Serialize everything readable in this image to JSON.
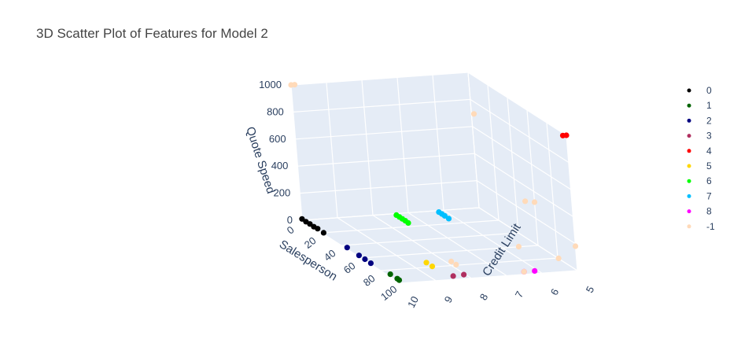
{
  "chart_data": {
    "type": "scatter3d",
    "title": "3D Scatter Plot of Features for Model 2",
    "axes": {
      "x": {
        "label": "Salesperson",
        "ticks": [
          "0",
          "20",
          "40",
          "60",
          "80",
          "100"
        ]
      },
      "y": {
        "label": "Credit Limit",
        "ticks": [
          "5",
          "6",
          "7",
          "8",
          "9",
          "10"
        ]
      },
      "z": {
        "label": "Quote Speed",
        "ticks": [
          "0",
          "200",
          "400",
          "600",
          "800",
          "1000"
        ]
      }
    },
    "legend": {
      "position": "right"
    },
    "series": [
      {
        "name": "0",
        "color": "#000000",
        "points": [
          {
            "x": 0,
            "y": 10,
            "z": 10
          },
          {
            "x": 4,
            "y": 10,
            "z": 8
          },
          {
            "x": 8,
            "y": 10,
            "z": 10
          },
          {
            "x": 12,
            "y": 10,
            "z": 8
          },
          {
            "x": 16,
            "y": 10,
            "z": 12
          },
          {
            "x": 22,
            "y": 10,
            "z": 10
          }
        ]
      },
      {
        "name": "1",
        "color": "#006400",
        "points": [
          {
            "x": 90,
            "y": 10,
            "z": 20
          },
          {
            "x": 97,
            "y": 10,
            "z": 20
          },
          {
            "x": 99,
            "y": 10,
            "z": 18
          }
        ]
      },
      {
        "name": "2",
        "color": "#000080",
        "points": [
          {
            "x": 46,
            "y": 10,
            "z": 12
          },
          {
            "x": 58,
            "y": 10,
            "z": 10
          },
          {
            "x": 64,
            "y": 10,
            "z": 10
          },
          {
            "x": 70,
            "y": 10,
            "z": 8
          }
        ]
      },
      {
        "name": "3",
        "color": "#b03060",
        "points": [
          {
            "x": 100,
            "y": 8.2,
            "z": 30
          },
          {
            "x": 100,
            "y": 8.5,
            "z": 25
          }
        ]
      },
      {
        "name": "4",
        "color": "#ff0000",
        "points": [
          {
            "x": 100,
            "y": 5.1,
            "z": 1000
          },
          {
            "x": 100,
            "y": 5.0,
            "z": 1000
          }
        ]
      },
      {
        "name": "5",
        "color": "#ffd700",
        "points": [
          {
            "x": 80,
            "y": 8.7,
            "z": 35
          },
          {
            "x": 86,
            "y": 8.7,
            "z": 35
          }
        ]
      },
      {
        "name": "6",
        "color": "#00ff00",
        "points": [
          {
            "x": 10,
            "y": 7.6,
            "z": 40
          },
          {
            "x": 13,
            "y": 7.6,
            "z": 40
          },
          {
            "x": 16,
            "y": 7.6,
            "z": 40
          },
          {
            "x": 19,
            "y": 7.6,
            "z": 40
          },
          {
            "x": 22,
            "y": 7.6,
            "z": 38
          }
        ]
      },
      {
        "name": "7",
        "color": "#00bfff",
        "points": [
          {
            "x": 10,
            "y": 6.4,
            "z": 40
          },
          {
            "x": 13,
            "y": 6.4,
            "z": 40
          },
          {
            "x": 16,
            "y": 6.4,
            "z": 40
          },
          {
            "x": 20,
            "y": 6.4,
            "z": 38
          }
        ]
      },
      {
        "name": "8",
        "color": "#ff00ff",
        "points": [
          {
            "x": 100,
            "y": 6.2,
            "z": 20
          },
          {
            "x": 100,
            "y": 6.5,
            "z": 20
          }
        ]
      },
      {
        "name": "-1",
        "color": "#ffdab9",
        "points": [
          {
            "x": 0,
            "y": 10,
            "z": 1000
          },
          {
            "x": 0,
            "y": 9.9,
            "z": 1000
          },
          {
            "x": 60,
            "y": 6.5,
            "z": 1000
          },
          {
            "x": 50,
            "y": 5.0,
            "z": 280
          },
          {
            "x": 60,
            "y": 5.0,
            "z": 320
          },
          {
            "x": 100,
            "y": 5.0,
            "z": 180
          },
          {
            "x": 85,
            "y": 6.2,
            "z": 130
          },
          {
            "x": 100,
            "y": 5.5,
            "z": 100
          },
          {
            "x": 100,
            "y": 6.5,
            "z": 20
          },
          {
            "x": 80,
            "y": 8.0,
            "z": 30
          },
          {
            "x": 85,
            "y": 8.0,
            "z": 30
          }
        ]
      }
    ]
  }
}
